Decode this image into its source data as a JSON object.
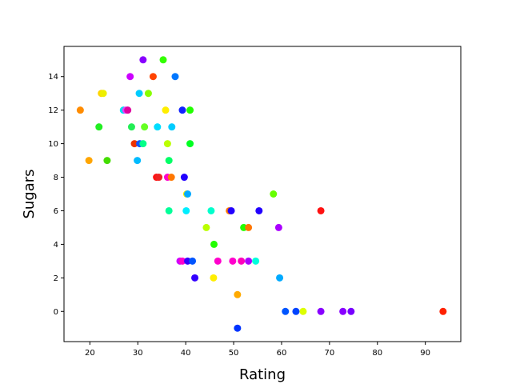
{
  "chart_data": {
    "type": "scatter",
    "title": "",
    "xlabel": "Rating",
    "ylabel": "Sugars",
    "xlim": [
      14.6,
      97.4
    ],
    "ylim": [
      -1.8,
      15.8
    ],
    "xticks": [
      20,
      30,
      40,
      50,
      60,
      70,
      80,
      90
    ],
    "yticks": [
      0,
      2,
      4,
      6,
      8,
      10,
      12,
      14
    ],
    "grid": false,
    "legend": "none",
    "colormap": "hsv",
    "points": [
      {
        "x": 18.0,
        "y": 12,
        "color": "#ff8c00"
      },
      {
        "x": 19.8,
        "y": 9,
        "color": "#ffa500"
      },
      {
        "x": 21.9,
        "y": 11,
        "color": "#22ee22"
      },
      {
        "x": 22.4,
        "y": 13,
        "color": "#ffd400"
      },
      {
        "x": 22.8,
        "y": 13,
        "color": "#eeee00"
      },
      {
        "x": 23.6,
        "y": 9,
        "color": "#44dd00"
      },
      {
        "x": 27.0,
        "y": 12,
        "color": "#00e0f0"
      },
      {
        "x": 27.5,
        "y": 12,
        "color": "#e040ff"
      },
      {
        "x": 27.9,
        "y": 12,
        "color": "#e0009f"
      },
      {
        "x": 28.4,
        "y": 14,
        "color": "#cc00ff"
      },
      {
        "x": 28.7,
        "y": 11,
        "color": "#22ee55"
      },
      {
        "x": 29.3,
        "y": 10,
        "color": "#ee3300"
      },
      {
        "x": 29.9,
        "y": 9,
        "color": "#00bbff"
      },
      {
        "x": 30.3,
        "y": 13,
        "color": "#00ccff"
      },
      {
        "x": 30.4,
        "y": 10,
        "color": "#1155ff"
      },
      {
        "x": 31.1,
        "y": 10,
        "color": "#00ff88"
      },
      {
        "x": 31.1,
        "y": 15,
        "color": "#8800ff"
      },
      {
        "x": 31.4,
        "y": 11,
        "color": "#66ff22"
      },
      {
        "x": 32.2,
        "y": 13,
        "color": "#88ff00"
      },
      {
        "x": 33.2,
        "y": 14,
        "color": "#ff4400"
      },
      {
        "x": 33.9,
        "y": 8,
        "color": "#ff1111"
      },
      {
        "x": 34.1,
        "y": 11,
        "color": "#00ddff"
      },
      {
        "x": 34.4,
        "y": 8,
        "color": "#ee2222"
      },
      {
        "x": 35.3,
        "y": 15,
        "color": "#33ff00"
      },
      {
        "x": 35.8,
        "y": 12,
        "color": "#ffee00"
      },
      {
        "x": 36.2,
        "y": 10,
        "color": "#bbff00"
      },
      {
        "x": 36.2,
        "y": 8,
        "color": "#ff00cc"
      },
      {
        "x": 36.5,
        "y": 9,
        "color": "#00ff66"
      },
      {
        "x": 36.5,
        "y": 6,
        "color": "#00ff99"
      },
      {
        "x": 37.0,
        "y": 8,
        "color": "#ff7700"
      },
      {
        "x": 37.1,
        "y": 11,
        "color": "#00ccff"
      },
      {
        "x": 37.8,
        "y": 14,
        "color": "#0077ff"
      },
      {
        "x": 38.8,
        "y": 3,
        "color": "#cc00ff"
      },
      {
        "x": 39.3,
        "y": 3,
        "color": "#ff00cc"
      },
      {
        "x": 39.3,
        "y": 12,
        "color": "#1122ff"
      },
      {
        "x": 39.7,
        "y": 8,
        "color": "#2200ff"
      },
      {
        "x": 40.1,
        "y": 6,
        "color": "#00eeff"
      },
      {
        "x": 40.2,
        "y": 7,
        "color": "#ffee00"
      },
      {
        "x": 40.4,
        "y": 7,
        "color": "#00aaff"
      },
      {
        "x": 40.4,
        "y": 3,
        "color": "#3300ff"
      },
      {
        "x": 40.9,
        "y": 12,
        "color": "#22ff00"
      },
      {
        "x": 40.9,
        "y": 10,
        "color": "#00ff22"
      },
      {
        "x": 41.4,
        "y": 3,
        "color": "#0055ff"
      },
      {
        "x": 41.9,
        "y": 2,
        "color": "#3300ff"
      },
      {
        "x": 44.3,
        "y": 5,
        "color": "#bbff00"
      },
      {
        "x": 45.3,
        "y": 6,
        "color": "#00ffcc"
      },
      {
        "x": 45.8,
        "y": 2,
        "color": "#ffee00"
      },
      {
        "x": 45.9,
        "y": 4,
        "color": "#22ff00"
      },
      {
        "x": 46.7,
        "y": 3,
        "color": "#ff00cc"
      },
      {
        "x": 49.1,
        "y": 6,
        "color": "#ff7700"
      },
      {
        "x": 49.5,
        "y": 6,
        "color": "#2200ff"
      },
      {
        "x": 49.8,
        "y": 3,
        "color": "#ff00cc"
      },
      {
        "x": 50.8,
        "y": 1,
        "color": "#ffaa00"
      },
      {
        "x": 50.8,
        "y": -1,
        "color": "#0033ff"
      },
      {
        "x": 51.6,
        "y": 3,
        "color": "#ff00bb"
      },
      {
        "x": 52.1,
        "y": 5,
        "color": "#22ff00"
      },
      {
        "x": 53.1,
        "y": 5,
        "color": "#ff7700"
      },
      {
        "x": 53.1,
        "y": 3,
        "color": "#aa00ff"
      },
      {
        "x": 54.6,
        "y": 3,
        "color": "#00ffdd"
      },
      {
        "x": 55.3,
        "y": 6,
        "color": "#2200ff"
      },
      {
        "x": 58.3,
        "y": 7,
        "color": "#66ff00"
      },
      {
        "x": 59.4,
        "y": 5,
        "color": "#aa00ff"
      },
      {
        "x": 59.6,
        "y": 2,
        "color": "#00aaff"
      },
      {
        "x": 60.8,
        "y": 0,
        "color": "#0055ff"
      },
      {
        "x": 63.0,
        "y": 0,
        "color": "#0044ff"
      },
      {
        "x": 64.5,
        "y": 0,
        "color": "#ddff00"
      },
      {
        "x": 68.2,
        "y": 6,
        "color": "#ff1111"
      },
      {
        "x": 68.2,
        "y": 0,
        "color": "#8800ff"
      },
      {
        "x": 72.8,
        "y": 0,
        "color": "#8800ff"
      },
      {
        "x": 74.5,
        "y": 0,
        "color": "#7700ff"
      },
      {
        "x": 93.7,
        "y": 0,
        "color": "#ff2200"
      }
    ]
  }
}
